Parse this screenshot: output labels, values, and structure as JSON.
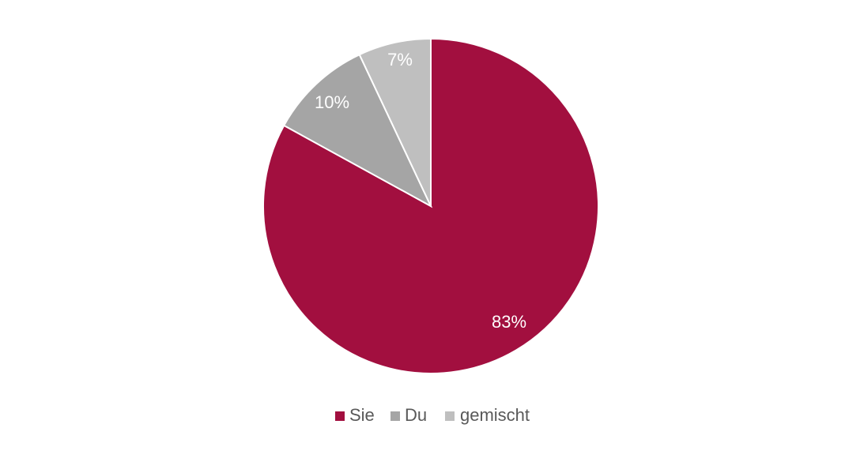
{
  "chart_data": {
    "type": "pie",
    "categories": [
      "Sie",
      "Du",
      "gemischt"
    ],
    "values": [
      83,
      10,
      7
    ],
    "labels": [
      "83%",
      "10%",
      "7%"
    ],
    "colors": [
      "#a20f3f",
      "#a5a5a5",
      "#bfbfbf"
    ],
    "start_angle_deg": 0,
    "direction": "clockwise",
    "legend": "bottom",
    "title": ""
  }
}
